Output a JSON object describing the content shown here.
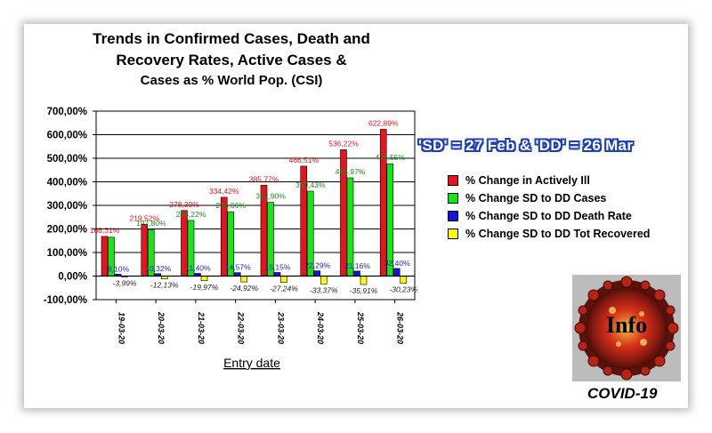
{
  "title": {
    "line1": "Trends in Confirmed Cases, Death and",
    "line2": "Recovery Rates, Active Cases &",
    "line3": "Cases as % World Pop. (CSI)"
  },
  "period_note": "'SD' = 27 Feb & 'DD' = 26 Mar",
  "logo_text": "Info",
  "covid_label": "COVID-19",
  "chart_data": {
    "type": "bar",
    "title": "Trends in Confirmed Cases, Death and Recovery Rates, Active Cases & Cases as % World Pop. (CSI)",
    "xlabel": "Entry date",
    "ylabel": "",
    "ylim": [
      -100,
      700
    ],
    "yticks": [
      "-100,00%",
      "0,00%",
      "100,00%",
      "200,00%",
      "300,00%",
      "400,00%",
      "500,00%",
      "600,00%",
      "700,00%"
    ],
    "ytick_values": [
      -100,
      0,
      100,
      200,
      300,
      400,
      500,
      600,
      700
    ],
    "grid": true,
    "legend_position": "right",
    "categories": [
      "19-03-20",
      "20-03-20",
      "21-03-20",
      "22-03-20",
      "23-03-20",
      "24-03-20",
      "25-03-20",
      "26-03-20"
    ],
    "series": [
      {
        "name": "% Change in Actively Ill",
        "color": "#e8141c",
        "values": [
          168.31,
          219.52,
          278.3,
          334.42,
          385.77,
          466.51,
          536.22,
          622.89
        ],
        "labels": [
          "168,31%",
          "219,52%",
          "278,30%",
          "334,42%",
          "385,77%",
          "466,51%",
          "536,22%",
          "622,89%"
        ],
        "label_color": "#e8141c"
      },
      {
        "name": "% Change SD to DD Cases",
        "color": "#14e814",
        "values": [
          165.0,
          197.8,
          236.22,
          273.06,
          312.9,
          360.43,
          416.97,
          476.55
        ],
        "labels": [
          "",
          "197,80%",
          "236,22%",
          "273,06%",
          "312,90%",
          "360,43%",
          "416,97%",
          "476,55%"
        ],
        "label_color": "#1e8a1e"
      },
      {
        "name": "% Change SD to DD Death Rate",
        "color": "#1414e0",
        "values": [
          8.1,
          10.32,
          11.4,
          14.57,
          15.15,
          22.29,
          21.16,
          32.4
        ],
        "labels": [
          "8,10%",
          "10,32%",
          "11,40%",
          "14,57%",
          "15,15%",
          "22,29%",
          "21,16%",
          "32,40%"
        ],
        "label_color": "#1e1ec8"
      },
      {
        "name": "% Change SD to DD Tot Recovered",
        "color": "#f8f814",
        "values": [
          -3.99,
          -12.13,
          -19.97,
          -24.92,
          -27.24,
          -33.37,
          -35.91,
          -30.23
        ],
        "labels": [
          "-3,99%",
          "-12,13%",
          "-19,97%",
          "-24,92%",
          "-27,24%",
          "-33,37%",
          "-35,91%",
          "-30,23%"
        ],
        "label_color": "#202020"
      }
    ]
  }
}
